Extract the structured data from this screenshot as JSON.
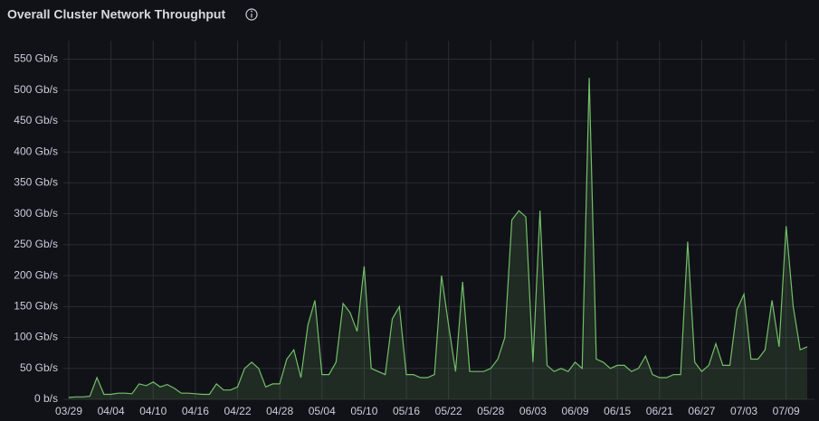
{
  "chart_data": {
    "type": "line",
    "title": "Overall Cluster Network Throughput",
    "categories": [
      "03/29",
      null,
      null,
      null,
      null,
      null,
      "04/04",
      null,
      null,
      null,
      null,
      null,
      "04/10",
      null,
      null,
      null,
      null,
      null,
      "04/16",
      null,
      null,
      null,
      null,
      null,
      "04/22",
      null,
      null,
      null,
      null,
      null,
      "04/28",
      null,
      null,
      null,
      null,
      null,
      "05/04",
      null,
      null,
      null,
      null,
      null,
      "05/10",
      null,
      null,
      null,
      null,
      null,
      "05/16",
      null,
      null,
      null,
      null,
      null,
      "05/22",
      null,
      null,
      null,
      null,
      null,
      "05/28",
      null,
      null,
      null,
      null,
      null,
      "06/03",
      null,
      null,
      null,
      null,
      null,
      "06/09",
      null,
      null,
      null,
      null,
      null,
      "06/15",
      null,
      null,
      null,
      null,
      null,
      "06/21",
      null,
      null,
      null,
      null,
      null,
      "06/27",
      null,
      null,
      null,
      null,
      null,
      "07/03",
      null,
      null,
      null,
      null,
      null,
      "07/09",
      null,
      null,
      null
    ],
    "values": [
      3,
      4,
      4,
      5,
      35,
      8,
      8,
      10,
      10,
      9,
      25,
      22,
      28,
      20,
      24,
      18,
      10,
      10,
      9,
      8,
      8,
      25,
      15,
      15,
      20,
      50,
      60,
      50,
      20,
      25,
      25,
      65,
      80,
      35,
      120,
      160,
      40,
      40,
      60,
      155,
      140,
      110,
      215,
      50,
      45,
      40,
      130,
      150,
      40,
      40,
      35,
      35,
      40,
      200,
      120,
      45,
      190,
      45,
      45,
      45,
      50,
      65,
      100,
      290,
      305,
      295,
      60,
      305,
      55,
      45,
      50,
      45,
      60,
      50,
      520,
      65,
      60,
      50,
      55,
      55,
      45,
      50,
      70,
      40,
      35,
      35,
      40,
      40,
      255,
      60,
      45,
      55,
      90,
      55,
      55,
      145,
      170,
      65,
      65,
      80,
      160,
      85,
      280,
      150,
      80,
      85
    ],
    "color": "#73bf69",
    "ylim": [
      0,
      580
    ],
    "yticks": [
      {
        "value": 0,
        "label": "0 b/s"
      },
      {
        "value": 50,
        "label": "50 Gb/s"
      },
      {
        "value": 100,
        "label": "100 Gb/s"
      },
      {
        "value": 150,
        "label": "150 Gb/s"
      },
      {
        "value": 200,
        "label": "200 Gb/s"
      },
      {
        "value": 250,
        "label": "250 Gb/s"
      },
      {
        "value": 300,
        "label": "300 Gb/s"
      },
      {
        "value": 350,
        "label": "350 Gb/s"
      },
      {
        "value": 400,
        "label": "400 Gb/s"
      },
      {
        "value": 450,
        "label": "450 Gb/s"
      },
      {
        "value": 500,
        "label": "500 Gb/s"
      },
      {
        "value": 550,
        "label": "550 Gb/s"
      }
    ],
    "grid": true
  }
}
